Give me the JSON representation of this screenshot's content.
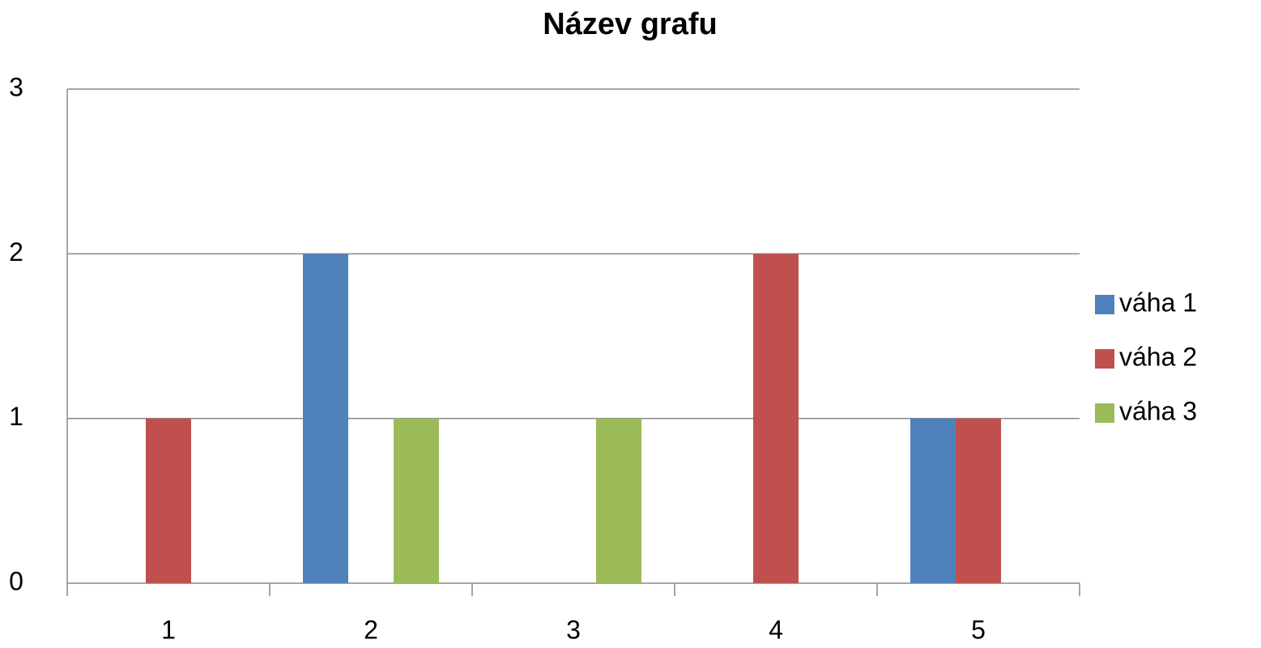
{
  "chart_data": {
    "type": "bar",
    "title": "Název grafu",
    "categories": [
      "1",
      "2",
      "3",
      "4",
      "5"
    ],
    "series": [
      {
        "name": "váha 1",
        "color": "#4f81bd",
        "values": [
          0,
          2,
          0,
          0,
          1
        ]
      },
      {
        "name": "váha 2",
        "color": "#c0504d",
        "values": [
          1,
          0,
          0,
          2,
          1
        ]
      },
      {
        "name": "váha 3",
        "color": "#9bbb59",
        "values": [
          0,
          1,
          1,
          0,
          0
        ]
      }
    ],
    "ylim": [
      0,
      3
    ],
    "yticks": [
      0,
      1,
      2,
      3
    ],
    "grid": true,
    "legend": "right"
  }
}
